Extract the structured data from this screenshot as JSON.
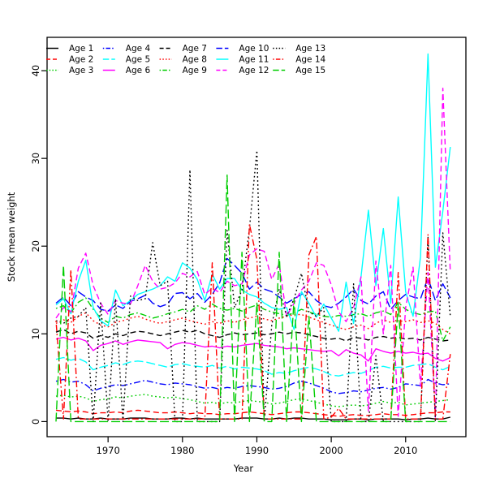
{
  "chart_data": {
    "type": "line",
    "title": "",
    "xlabel": "Year",
    "ylabel": "Stock mean weight",
    "xlim": [
      1961.8,
      2018.1
    ],
    "ylim": [
      -1.72,
      43.8
    ],
    "x_ticks": [
      1970,
      1980,
      1990,
      2000,
      2010
    ],
    "y_ticks": [
      0,
      10,
      20,
      30,
      40
    ],
    "grid": false,
    "legend_position": "top-left-inside",
    "legend_columns": 5,
    "x": [
      1963,
      1964,
      1965,
      1966,
      1967,
      1968,
      1969,
      1970,
      1971,
      1972,
      1973,
      1974,
      1975,
      1976,
      1977,
      1978,
      1979,
      1980,
      1981,
      1982,
      1983,
      1984,
      1985,
      1986,
      1987,
      1988,
      1989,
      1990,
      1991,
      1992,
      1993,
      1994,
      1995,
      1996,
      1997,
      1998,
      1999,
      2000,
      2001,
      2002,
      2003,
      2004,
      2005,
      2006,
      2007,
      2008,
      2009,
      2010,
      2011,
      2012,
      2013,
      2014,
      2015,
      2016
    ],
    "series": [
      {
        "name": "Age 1",
        "color": "#000000",
        "linestyle": "solid",
        "values": [
          0.4,
          0.4,
          0.3,
          0.4,
          0.3,
          0.3,
          0.4,
          0.3,
          0.3,
          0.3,
          0.4,
          0.4,
          0.4,
          0.3,
          0.3,
          0.3,
          0.4,
          0.4,
          0.3,
          0.4,
          0.3,
          0.3,
          0.3,
          0.3,
          0.3,
          0.4,
          0.4,
          0.4,
          0.3,
          0.3,
          0.4,
          0.3,
          0.4,
          0.4,
          0.3,
          0.3,
          0.3,
          0.2,
          0.2,
          0.2,
          0.3,
          0.3,
          0.2,
          0.3,
          0.3,
          0.3,
          0.3,
          0.2,
          0.3,
          0.3,
          0.4,
          0.3,
          0.3,
          0.5
        ]
      },
      {
        "name": "Age 2",
        "color": "#FF0000",
        "linestyle": "dashed",
        "values": [
          1.3,
          1.2,
          1.1,
          1.2,
          1.1,
          0.9,
          1.0,
          1.0,
          1.1,
          1.0,
          1.2,
          1.3,
          1.2,
          1.1,
          1.0,
          1.0,
          1.1,
          1.0,
          0.9,
          1.0,
          0.9,
          0.9,
          0.8,
          0.9,
          0.9,
          1.0,
          1.1,
          1.0,
          0.9,
          0.8,
          0.9,
          1.0,
          1.1,
          1.1,
          1.0,
          0.9,
          0.8,
          0.7,
          0.6,
          0.7,
          0.8,
          0.7,
          0.7,
          0.8,
          0.9,
          0.8,
          0.8,
          0.7,
          0.8,
          0.9,
          1.0,
          1.0,
          1.1,
          1.1
        ]
      },
      {
        "name": "Age 3",
        "color": "#00CD00",
        "linestyle": "dotted",
        "values": [
          2.9,
          3.0,
          2.8,
          2.9,
          2.7,
          2.3,
          2.5,
          2.6,
          2.8,
          2.7,
          2.9,
          3.0,
          3.1,
          2.9,
          2.8,
          2.7,
          2.8,
          2.6,
          2.5,
          2.3,
          2.1,
          2.2,
          2.0,
          2.2,
          2.1,
          2.3,
          2.4,
          2.3,
          2.2,
          2.0,
          2.1,
          2.3,
          2.5,
          2.6,
          2.4,
          2.2,
          2.0,
          1.8,
          1.7,
          1.8,
          1.9,
          1.8,
          1.9,
          2.1,
          2.3,
          2.1,
          2.2,
          1.9,
          2.0,
          2.1,
          2.2,
          2.3,
          2.4,
          2.5
        ]
      },
      {
        "name": "Age 4",
        "color": "#0000FF",
        "linestyle": "dotdash",
        "values": [
          4.6,
          4.8,
          4.5,
          4.6,
          4.2,
          3.5,
          3.8,
          4.0,
          4.2,
          4.1,
          4.3,
          4.5,
          4.7,
          4.5,
          4.3,
          4.2,
          4.4,
          4.3,
          4.2,
          4.0,
          3.8,
          3.9,
          3.7,
          3.9,
          3.8,
          4.0,
          4.1,
          4.0,
          3.9,
          3.7,
          3.8,
          4.0,
          4.4,
          4.6,
          4.4,
          4.1,
          3.8,
          3.4,
          3.2,
          3.3,
          3.5,
          3.4,
          3.6,
          3.8,
          3.9,
          3.7,
          3.9,
          4.3,
          4.2,
          4.1,
          4.8,
          4.4,
          4.2,
          4.3
        ]
      },
      {
        "name": "Age 5",
        "color": "#00FFFF",
        "linestyle": "longdash",
        "values": [
          7.1,
          7.3,
          7.0,
          7.2,
          6.8,
          5.9,
          6.2,
          6.4,
          6.7,
          6.5,
          6.8,
          6.9,
          6.8,
          6.6,
          6.4,
          6.2,
          6.5,
          6.6,
          6.4,
          6.3,
          6.2,
          6.4,
          6.1,
          6.3,
          6.0,
          6.2,
          6.1,
          6.0,
          5.8,
          5.4,
          5.6,
          5.5,
          5.8,
          6.0,
          6.2,
          6.0,
          5.7,
          5.3,
          5.2,
          5.4,
          5.6,
          5.5,
          5.8,
          6.2,
          6.3,
          6.1,
          6.2,
          6.2,
          6.4,
          6.5,
          6.6,
          6.2,
          5.9,
          6.3
        ]
      },
      {
        "name": "Age 6",
        "color": "#FF00FF",
        "linestyle": "solid",
        "values": [
          9.4,
          9.6,
          9.3,
          9.5,
          9.2,
          8.1,
          8.7,
          8.9,
          9.2,
          8.8,
          9.1,
          9.3,
          9.2,
          9.1,
          9.0,
          8.3,
          8.8,
          9.0,
          8.9,
          8.7,
          8.5,
          8.6,
          8.4,
          8.6,
          8.5,
          8.7,
          8.8,
          8.9,
          8.7,
          8.6,
          8.5,
          8.3,
          8.4,
          8.3,
          8.2,
          8.1,
          8.0,
          8.1,
          7.5,
          8.2,
          7.8,
          7.6,
          6.9,
          8.3,
          8.0,
          7.8,
          8.0,
          7.8,
          7.9,
          7.7,
          7.8,
          7.2,
          6.9,
          7.3
        ]
      },
      {
        "name": "Age 7",
        "color": "#000000",
        "linestyle": "dashed",
        "values": [
          10.2,
          10.5,
          10.0,
          10.3,
          10.1,
          9.5,
          9.8,
          9.6,
          10.0,
          9.8,
          10.1,
          10.3,
          10.2,
          10.0,
          9.8,
          10.0,
          10.2,
          10.4,
          10.2,
          10.4,
          10.0,
          9.8,
          9.6,
          9.9,
          10.1,
          9.9,
          10.0,
          10.1,
          9.9,
          10.0,
          10.2,
          10.0,
          10.2,
          10.1,
          9.9,
          9.7,
          9.5,
          9.4,
          9.5,
          9.2,
          9.6,
          9.5,
          9.3,
          9.6,
          9.7,
          9.5,
          9.6,
          9.4,
          9.5,
          9.3,
          9.6,
          9.4,
          9.2,
          9.3
        ]
      },
      {
        "name": "Age 8",
        "color": "#FF0000",
        "linestyle": "dotted",
        "values": [
          11.2,
          11.6,
          11.3,
          12.0,
          12.4,
          11.5,
          11.0,
          10.8,
          11.3,
          11.5,
          11.8,
          12.0,
          11.7,
          11.4,
          11.2,
          11.4,
          11.6,
          11.8,
          11.5,
          11.3,
          11.1,
          11.4,
          11.2,
          11.5,
          11.3,
          11.6,
          11.8,
          12.0,
          11.7,
          11.5,
          11.8,
          12.0,
          12.2,
          12.2,
          11.9,
          11.6,
          11.3,
          11.0,
          10.7,
          10.5,
          10.8,
          11.0,
          10.6,
          11.2,
          11.6,
          11.3,
          11.5,
          11.4,
          11.6,
          11.3,
          11.5,
          11.2,
          10.5,
          10.0
        ]
      },
      {
        "name": "Age 9",
        "color": "#00CD00",
        "linestyle": "dotdash",
        "values": [
          12.9,
          13.2,
          12.4,
          13.6,
          14.1,
          12.8,
          11.8,
          11.3,
          12.0,
          11.8,
          12.2,
          12.4,
          12.1,
          11.8,
          12.0,
          12.3,
          12.5,
          12.8,
          12.5,
          13.2,
          12.8,
          13.4,
          12.9,
          12.7,
          12.9,
          12.6,
          13.0,
          13.3,
          12.8,
          12.5,
          12.3,
          12.1,
          12.4,
          12.8,
          12.5,
          12.2,
          12.0,
          11.9,
          12.1,
          12.0,
          12.2,
          12.3,
          12.0,
          12.4,
          12.6,
          12.2,
          13.6,
          12.8,
          12.4,
          12.2,
          12.5,
          12.6,
          9.2,
          10.8
        ]
      },
      {
        "name": "Age 10",
        "color": "#0000FF",
        "linestyle": "longdash",
        "values": [
          13.5,
          14.2,
          13.2,
          14.8,
          14.2,
          13.8,
          12.8,
          12.6,
          13.3,
          12.9,
          13.7,
          14.0,
          14.4,
          13.5,
          13.1,
          13.4,
          14.6,
          14.7,
          14.0,
          14.6,
          13.6,
          14.5,
          15.8,
          18.6,
          17.8,
          16.9,
          15.1,
          15.9,
          15.1,
          14.8,
          14.2,
          13.5,
          14.0,
          14.5,
          14.8,
          13.8,
          13.2,
          13.0,
          13.5,
          14.2,
          15.1,
          13.8,
          13.4,
          14.3,
          14.8,
          12.8,
          13.8,
          14.5,
          14.2,
          14.0,
          16.4,
          13.8,
          15.7,
          14.1
        ]
      },
      {
        "name": "Age 11",
        "color": "#00FFFF",
        "linestyle": "solid",
        "values": [
          13.3,
          14.0,
          12.3,
          16.0,
          18.4,
          13.0,
          11.5,
          10.9,
          15.0,
          13.2,
          13.8,
          14.5,
          14.8,
          15.1,
          15.5,
          16.5,
          16.0,
          18.1,
          17.5,
          16.2,
          13.8,
          16.8,
          15.1,
          16.3,
          16.3,
          15.0,
          14.5,
          14.2,
          13.5,
          13.0,
          12.8,
          13.0,
          10.5,
          14.8,
          13.5,
          11.9,
          13.4,
          11.8,
          10.3,
          15.9,
          11.2,
          16.5,
          24.1,
          15.5,
          22.0,
          13.5,
          25.6,
          14.8,
          12.0,
          18.8,
          41.9,
          17.6,
          24.0,
          31.3
        ]
      },
      {
        "name": "Age 12",
        "color": "#FF00FF",
        "linestyle": "dashed",
        "values": [
          11.8,
          13.0,
          12.5,
          17.5,
          19.2,
          15.5,
          13.5,
          12.2,
          13.8,
          13.5,
          13.4,
          15.5,
          17.8,
          16.0,
          15.1,
          15.3,
          15.8,
          16.9,
          16.5,
          17.1,
          14.5,
          15.2,
          14.7,
          16.0,
          15.5,
          15.7,
          19.0,
          19.7,
          19.4,
          16.2,
          18.0,
          12.0,
          13.5,
          15.0,
          16.0,
          18.1,
          17.8,
          15.6,
          12.5,
          11.4,
          13.0,
          16.5,
          1.2,
          18.3,
          10.0,
          17.8,
          0.6,
          13.0,
          17.6,
          4.0,
          17.0,
          0.5,
          38.0,
          17.0
        ]
      },
      {
        "name": "Age 13",
        "color": "#000000",
        "linestyle": "dotted",
        "values": [
          11.5,
          11.2,
          11.8,
          12.0,
          13.0,
          0,
          13.5,
          0,
          14.0,
          0,
          14.3,
          13.8,
          14.0,
          20.4,
          15.5,
          16.0,
          0,
          0,
          28.7,
          0,
          0,
          0,
          0,
          21.8,
          13.0,
          15.0,
          22.0,
          30.9,
          0,
          11.0,
          15.1,
          12.0,
          14.0,
          16.9,
          12.5,
          12.0,
          13.0,
          0,
          0,
          0,
          15.7,
          0,
          0,
          7.5,
          0,
          0,
          0,
          0,
          0,
          0,
          21.0,
          0,
          21.5,
          12.0
        ]
      },
      {
        "name": "Age 14",
        "color": "#FF0000",
        "linestyle": "dotdash",
        "values": [
          11.5,
          0.3,
          17.3,
          0.3,
          0.3,
          0.3,
          0.3,
          0.3,
          0.3,
          0.3,
          0.3,
          0.3,
          0.3,
          0.3,
          0.3,
          0.3,
          0.3,
          0.3,
          0.3,
          0.3,
          0.3,
          18.1,
          0.3,
          0.3,
          0.3,
          0.3,
          22.5,
          18.5,
          0.3,
          0.3,
          0.3,
          0.3,
          0.3,
          0.3,
          19.0,
          21.1,
          0.3,
          0.5,
          1.5,
          0.3,
          0.3,
          0.3,
          0.3,
          0.3,
          0.3,
          0.3,
          17.0,
          0.3,
          0.3,
          0.3,
          21.3,
          0.3,
          0.3,
          7.7
        ]
      },
      {
        "name": "Age 15",
        "color": "#00CD00",
        "linestyle": "longdash",
        "values": [
          0,
          17.8,
          0,
          0,
          0,
          0,
          0,
          0,
          0,
          0,
          0,
          0,
          0,
          0,
          0,
          0,
          0,
          0,
          0,
          0,
          0,
          0,
          0,
          28.1,
          0,
          19.3,
          0,
          13.5,
          0,
          0,
          19.3,
          0,
          14.0,
          0,
          12.0,
          0,
          0,
          0,
          0,
          0,
          0,
          0,
          0,
          0,
          0,
          0,
          13.5,
          0,
          0,
          0,
          0,
          0,
          0,
          0
        ]
      }
    ]
  }
}
